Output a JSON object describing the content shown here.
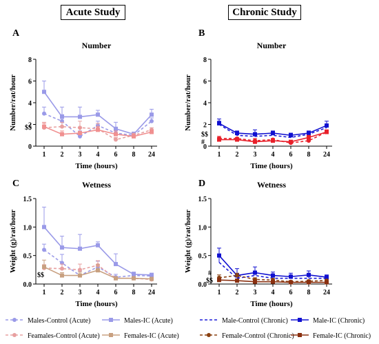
{
  "headers": {
    "acute": "Acute Study",
    "chronic": "Chronic Study"
  },
  "colors": {
    "males_control_acute": "#9a9ae8",
    "males_ic_acute": "#9a9ae8",
    "females_control_acute": "#e8a0a0",
    "females_ic_acute": "#c8a080",
    "male_control_chronic": "#1a1ad8",
    "male_ic_chronic": "#1010d0",
    "female_control_chronic": "#8a4010",
    "female_ic_chronic": "#8a3010",
    "female_red": "#e8202a"
  },
  "legend": [
    {
      "label": "Males-Control (Acute)",
      "color": "#9a9ae8",
      "dash": true,
      "marker": "circle"
    },
    {
      "label": "Males-IC (Acute)",
      "color": "#9a9ae8",
      "dash": false,
      "marker": "square"
    },
    {
      "label": "Male-Control (Chronic)",
      "color": "#1a1ad8",
      "dash": true,
      "marker": "none"
    },
    {
      "label": "Male-IC (Chronic)",
      "color": "#1010d0",
      "dash": false,
      "marker": "square"
    },
    {
      "label": "Feamales-Control (Acute)",
      "color": "#e8a0a0",
      "dash": true,
      "marker": "circle"
    },
    {
      "label": "Females-IC (Acute)",
      "color": "#c8a080",
      "dash": false,
      "marker": "square"
    },
    {
      "label": "Female-Control (Chronic)",
      "color": "#8a4010",
      "dash": true,
      "marker": "circle"
    },
    {
      "label": "Female-IC (Chronic)",
      "color": "#8a3010",
      "dash": false,
      "marker": "square"
    }
  ],
  "chart_data": [
    {
      "panel": "A",
      "type": "line",
      "title": "Number",
      "xlabel": "Time (hours)",
      "ylabel": "Number/rat/hour",
      "categories": [
        "1",
        "2",
        "3",
        "4",
        "6",
        "8",
        "24"
      ],
      "ylim": [
        0,
        8
      ],
      "yticks": [
        0,
        2,
        4,
        6,
        8
      ],
      "annotations": [
        "$$"
      ],
      "series": [
        {
          "name": "Males-Control (Acute)",
          "color": "#9a9ae8",
          "dash": true,
          "marker": "circle",
          "values": [
            3.0,
            2.3,
            0.9,
            1.9,
            1.2,
            1.0,
            2.3
          ],
          "err": [
            0.6,
            0.6,
            0.5,
            0.4,
            0.4,
            0.2,
            0.3
          ]
        },
        {
          "name": "Males-IC (Acute)",
          "color": "#9a9ae8",
          "dash": false,
          "marker": "square",
          "values": [
            5.0,
            2.7,
            2.7,
            2.9,
            1.6,
            1.1,
            2.9
          ],
          "err": [
            1.0,
            0.9,
            0.9,
            0.4,
            0.6,
            0.2,
            0.5
          ]
        },
        {
          "name": "Feamales-Control (Acute)",
          "color": "#e8a0a0",
          "dash": true,
          "marker": "circle",
          "values": [
            1.7,
            1.8,
            1.7,
            1.6,
            0.6,
            1.0,
            1.5
          ],
          "err": [
            0.5,
            0.4,
            0.6,
            0.5,
            0.2,
            0.2,
            0.2
          ]
        },
        {
          "name": "Females-IC (Acute)",
          "color": "#f09090",
          "dash": false,
          "marker": "square",
          "values": [
            1.8,
            1.1,
            1.2,
            1.5,
            1.1,
            0.9,
            1.3
          ],
          "err": [
            0.3,
            0.3,
            0.5,
            0.3,
            0.3,
            0.2,
            0.2
          ]
        }
      ]
    },
    {
      "panel": "B",
      "type": "line",
      "title": "Number",
      "xlabel": "Time (hours)",
      "ylabel": "Number/rat/hour",
      "categories": [
        "1",
        "2",
        "3",
        "4",
        "6",
        "8",
        "24"
      ],
      "ylim": [
        0,
        8
      ],
      "yticks": [
        0,
        2,
        4,
        6,
        8
      ],
      "annotations": [
        "$$",
        "#"
      ],
      "series": [
        {
          "name": "Male-Control (Chronic)",
          "color": "#1a1ad8",
          "dash": true,
          "marker": "none",
          "values": [
            2.0,
            1.0,
            0.9,
            1.0,
            0.8,
            1.1,
            1.7
          ],
          "err": [
            0.3,
            0.2,
            0.2,
            0.2,
            0.2,
            0.2,
            0.3
          ]
        },
        {
          "name": "Male-IC (Chronic)",
          "color": "#1010d0",
          "dash": false,
          "marker": "square",
          "values": [
            2.1,
            1.2,
            1.1,
            1.2,
            1.0,
            1.2,
            1.9
          ],
          "err": [
            0.4,
            0.2,
            0.4,
            0.2,
            0.2,
            0.2,
            0.4
          ]
        },
        {
          "name": "Female-Control (Chronic)",
          "color": "#e8202a",
          "dash": true,
          "marker": "circle",
          "values": [
            0.7,
            0.7,
            0.5,
            0.6,
            0.3,
            0.5,
            1.3
          ],
          "err": [
            0.2,
            0.1,
            0.2,
            0.1,
            0.1,
            0.1,
            0.2
          ]
        },
        {
          "name": "Female-IC (Chronic)",
          "color": "#e8202a",
          "dash": false,
          "marker": "square",
          "values": [
            0.6,
            0.6,
            0.4,
            0.5,
            0.4,
            0.8,
            1.3
          ],
          "err": [
            0.2,
            0.1,
            0.1,
            0.1,
            0.1,
            0.2,
            0.2
          ]
        }
      ]
    },
    {
      "panel": "C",
      "type": "line",
      "title": "Wetness",
      "xlabel": "Time (hours)",
      "ylabel": "Weight (g)/rat/hour",
      "categories": [
        "1",
        "2",
        "3",
        "4",
        "6",
        "8",
        "24"
      ],
      "ylim": [
        0,
        1.5
      ],
      "yticks": [
        0.0,
        0.5,
        1.0,
        1.5
      ],
      "annotations": [
        "$$"
      ],
      "series": [
        {
          "name": "Males-Control (Acute)",
          "color": "#9a9ae8",
          "dash": true,
          "marker": "circle",
          "values": [
            0.6,
            0.37,
            0.15,
            0.3,
            0.12,
            0.15,
            0.14
          ],
          "err": [
            0.1,
            0.15,
            0.08,
            0.1,
            0.05,
            0.04,
            0.03
          ]
        },
        {
          "name": "Males-IC (Acute)",
          "color": "#9a9ae8",
          "dash": false,
          "marker": "square",
          "values": [
            1.0,
            0.64,
            0.62,
            0.68,
            0.35,
            0.17,
            0.16
          ],
          "err": [
            0.35,
            0.2,
            0.25,
            0.06,
            0.18,
            0.04,
            0.03
          ]
        },
        {
          "name": "Feamales-Control (Acute)",
          "color": "#e8a0a0",
          "dash": true,
          "marker": "circle",
          "values": [
            0.28,
            0.27,
            0.25,
            0.33,
            0.1,
            0.1,
            0.08
          ],
          "err": [
            0.06,
            0.08,
            0.1,
            0.08,
            0.03,
            0.03,
            0.02
          ]
        },
        {
          "name": "Females-IC (Acute)",
          "color": "#c8a080",
          "dash": false,
          "marker": "square",
          "values": [
            0.3,
            0.15,
            0.15,
            0.24,
            0.1,
            0.1,
            0.09
          ],
          "err": [
            0.12,
            0.05,
            0.06,
            0.1,
            0.03,
            0.03,
            0.02
          ]
        }
      ]
    },
    {
      "panel": "D",
      "type": "line",
      "title": "Wetness",
      "xlabel": "Time (hours)",
      "ylabel": "Weight (g)/rat/hour",
      "categories": [
        "1",
        "2",
        "3",
        "4",
        "6",
        "8",
        "24"
      ],
      "ylim": [
        0,
        1.5
      ],
      "yticks": [
        0.0,
        0.5,
        1.0,
        1.5
      ],
      "annotations": [
        "#",
        "$$"
      ],
      "series": [
        {
          "name": "Male-Control (Chronic)",
          "color": "#1a1ad8",
          "dash": true,
          "marker": "none",
          "values": [
            0.38,
            0.1,
            0.15,
            0.1,
            0.1,
            0.1,
            0.1
          ],
          "err": [
            0.1,
            0.05,
            0.06,
            0.04,
            0.04,
            0.04,
            0.03
          ]
        },
        {
          "name": "Male-IC (Chronic)",
          "color": "#1010d0",
          "dash": false,
          "marker": "square",
          "values": [
            0.5,
            0.15,
            0.2,
            0.15,
            0.13,
            0.16,
            0.12
          ],
          "err": [
            0.13,
            0.12,
            0.1,
            0.06,
            0.06,
            0.07,
            0.04
          ]
        },
        {
          "name": "Female-Control (Chronic)",
          "color": "#8a4010",
          "dash": true,
          "marker": "circle",
          "values": [
            0.11,
            0.15,
            0.08,
            0.07,
            0.04,
            0.05,
            0.06
          ],
          "err": [
            0.05,
            0.04,
            0.03,
            0.03,
            0.02,
            0.02,
            0.02
          ]
        },
        {
          "name": "Female-IC (Chronic)",
          "color": "#8a3010",
          "dash": false,
          "marker": "square",
          "values": [
            0.07,
            0.06,
            0.04,
            0.04,
            0.03,
            0.03,
            0.03
          ],
          "err": [
            0.03,
            0.02,
            0.02,
            0.02,
            0.02,
            0.02,
            0.02
          ]
        }
      ]
    }
  ]
}
